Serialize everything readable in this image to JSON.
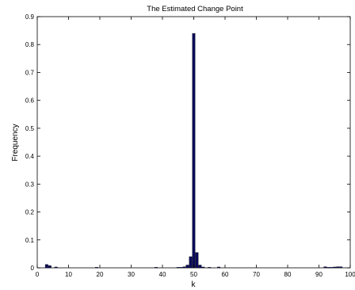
{
  "chart_data": {
    "type": "bar",
    "title": "The Estimated Change Point",
    "xlabel": "k",
    "ylabel": "Frequency",
    "xlim": [
      0,
      100
    ],
    "ylim": [
      0,
      0.9
    ],
    "xticks": [
      0,
      10,
      20,
      30,
      40,
      50,
      60,
      70,
      80,
      90,
      100
    ],
    "xtick_labels": [
      "0",
      "10",
      "20",
      "30",
      "40",
      "50",
      "60",
      "70",
      "80",
      "90",
      "100"
    ],
    "yticks": [
      0,
      0.1,
      0.2,
      0.3,
      0.4,
      0.5,
      0.6,
      0.7,
      0.8,
      0.9
    ],
    "ytick_labels": [
      "0",
      "0.1",
      "0.2",
      "0.3",
      "0.4",
      "0.5",
      "0.6",
      "0.7",
      "0.8",
      "0.9"
    ],
    "grid": false,
    "bar_color": "#0a0a5a",
    "bars": [
      {
        "x": 3,
        "y": 0.012
      },
      {
        "x": 4,
        "y": 0.008
      },
      {
        "x": 6,
        "y": 0.003
      },
      {
        "x": 19,
        "y": 0.002
      },
      {
        "x": 38,
        "y": 0.002
      },
      {
        "x": 45,
        "y": 0.002
      },
      {
        "x": 46,
        "y": 0.002
      },
      {
        "x": 47,
        "y": 0.004
      },
      {
        "x": 48,
        "y": 0.01
      },
      {
        "x": 49,
        "y": 0.04
      },
      {
        "x": 50,
        "y": 0.84
      },
      {
        "x": 51,
        "y": 0.055
      },
      {
        "x": 52,
        "y": 0.01
      },
      {
        "x": 53,
        "y": 0.003
      },
      {
        "x": 55,
        "y": 0.002
      },
      {
        "x": 58,
        "y": 0.003
      },
      {
        "x": 92,
        "y": 0.004
      },
      {
        "x": 93,
        "y": 0.002
      },
      {
        "x": 94,
        "y": 0.002
      },
      {
        "x": 95,
        "y": 0.003
      },
      {
        "x": 96,
        "y": 0.004
      },
      {
        "x": 97,
        "y": 0.004
      }
    ]
  }
}
